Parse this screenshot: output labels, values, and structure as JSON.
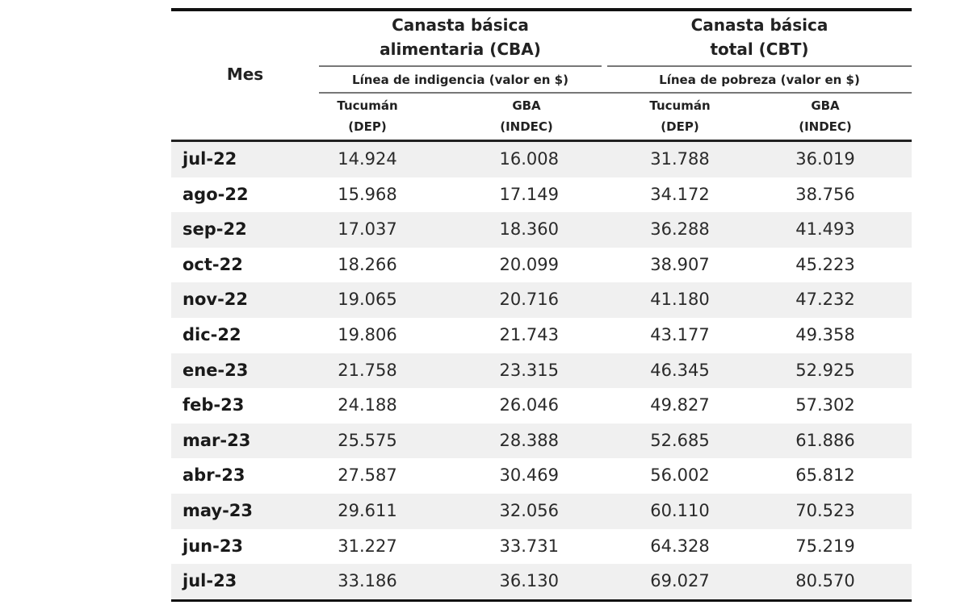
{
  "table": {
    "row_header": "Mes",
    "groups": [
      {
        "title_line1": "Canasta básica",
        "title_line2": "alimentaria (CBA)",
        "subtitle": "Línea de indigencia (valor en $)",
        "columns": [
          {
            "line1": "Tucumán",
            "line2": "(DEP)"
          },
          {
            "line1": "GBA",
            "line2": "(INDEC)"
          }
        ]
      },
      {
        "title_line1": "Canasta básica",
        "title_line2": "total (CBT)",
        "subtitle": "Línea de pobreza (valor en $)",
        "columns": [
          {
            "line1": "Tucumán",
            "line2": "(DEP)"
          },
          {
            "line1": "GBA",
            "line2": "(INDEC)"
          }
        ]
      }
    ],
    "rows": [
      {
        "mes": "jul-22",
        "cba_tuc": "14.924",
        "cba_gba": "16.008",
        "cbt_tuc": "31.788",
        "cbt_gba": "36.019"
      },
      {
        "mes": "ago-22",
        "cba_tuc": "15.968",
        "cba_gba": "17.149",
        "cbt_tuc": "34.172",
        "cbt_gba": "38.756"
      },
      {
        "mes": "sep-22",
        "cba_tuc": "17.037",
        "cba_gba": "18.360",
        "cbt_tuc": "36.288",
        "cbt_gba": "41.493"
      },
      {
        "mes": "oct-22",
        "cba_tuc": "18.266",
        "cba_gba": "20.099",
        "cbt_tuc": "38.907",
        "cbt_gba": "45.223"
      },
      {
        "mes": "nov-22",
        "cba_tuc": "19.065",
        "cba_gba": "20.716",
        "cbt_tuc": "41.180",
        "cbt_gba": "47.232"
      },
      {
        "mes": "dic-22",
        "cba_tuc": "19.806",
        "cba_gba": "21.743",
        "cbt_tuc": "43.177",
        "cbt_gba": "49.358"
      },
      {
        "mes": "ene-23",
        "cba_tuc": "21.758",
        "cba_gba": "23.315",
        "cbt_tuc": "46.345",
        "cbt_gba": "52.925"
      },
      {
        "mes": "feb-23",
        "cba_tuc": "24.188",
        "cba_gba": "26.046",
        "cbt_tuc": "49.827",
        "cbt_gba": "57.302"
      },
      {
        "mes": "mar-23",
        "cba_tuc": "25.575",
        "cba_gba": "28.388",
        "cbt_tuc": "52.685",
        "cbt_gba": "61.886"
      },
      {
        "mes": "abr-23",
        "cba_tuc": "27.587",
        "cba_gba": "30.469",
        "cbt_tuc": "56.002",
        "cbt_gba": "65.812"
      },
      {
        "mes": "may-23",
        "cba_tuc": "29.611",
        "cba_gba": "32.056",
        "cbt_tuc": "60.110",
        "cbt_gba": "70.523"
      },
      {
        "mes": "jun-23",
        "cba_tuc": "31.227",
        "cba_gba": "33.731",
        "cbt_tuc": "64.328",
        "cbt_gba": "75.219"
      },
      {
        "mes": "jul-23",
        "cba_tuc": "33.186",
        "cba_gba": "36.130",
        "cbt_tuc": "69.027",
        "cbt_gba": "80.570"
      }
    ]
  },
  "colors": {
    "row_shade": "#f0f0f0",
    "rule": "#111111",
    "text": "#2a2a2a"
  }
}
